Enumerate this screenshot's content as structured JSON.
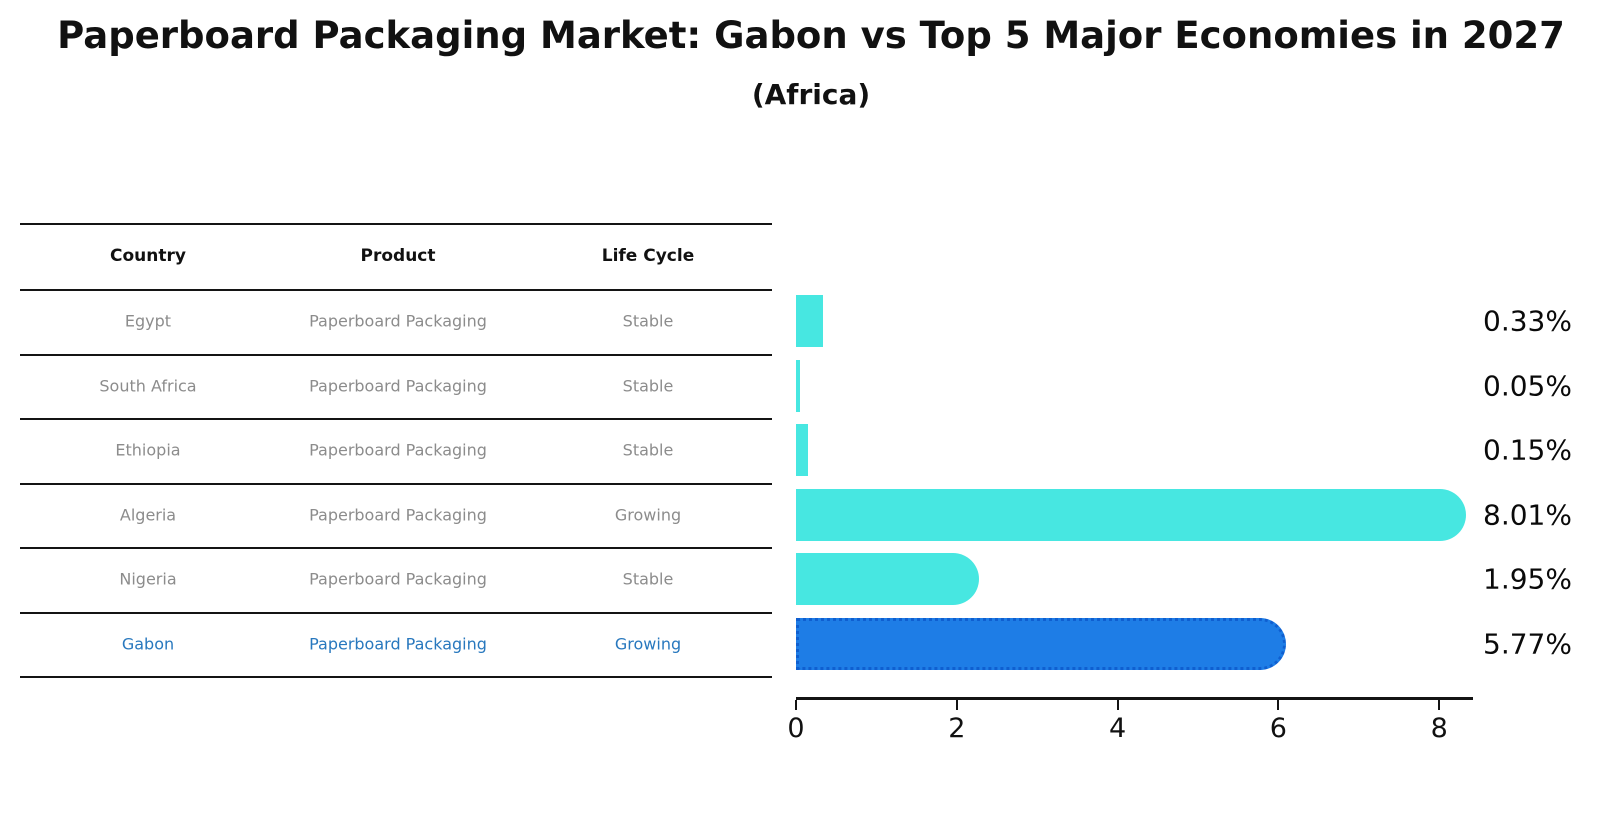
{
  "title": "Paperboard Packaging Market: Gabon vs Top 5 Major Economies in 2027",
  "subtitle": "(Africa)",
  "table": {
    "columns": [
      "Country",
      "Product",
      "Life Cycle"
    ],
    "rows": [
      {
        "country": "Egypt",
        "product": "Paperboard Packaging",
        "life_cycle": "Stable",
        "highlight": false
      },
      {
        "country": "South Africa",
        "product": "Paperboard Packaging",
        "life_cycle": "Stable",
        "highlight": false
      },
      {
        "country": "Ethiopia",
        "product": "Paperboard Packaging",
        "life_cycle": "Stable",
        "highlight": false
      },
      {
        "country": "Algeria",
        "product": "Paperboard Packaging",
        "life_cycle": "Growing",
        "highlight": false
      },
      {
        "country": "Nigeria",
        "product": "Paperboard Packaging",
        "life_cycle": "Stable",
        "highlight": false
      },
      {
        "country": "Gabon",
        "product": "Paperboard Packaging",
        "life_cycle": "Growing",
        "highlight": true
      }
    ]
  },
  "chart_data": {
    "type": "bar",
    "orientation": "horizontal",
    "title": "Paperboard Packaging Market: Gabon vs Top 5 Major Economies in 2027 (Africa)",
    "categories": [
      "Egypt",
      "South Africa",
      "Ethiopia",
      "Algeria",
      "Nigeria",
      "Gabon"
    ],
    "values": [
      0.33,
      0.05,
      0.15,
      8.01,
      1.95,
      5.77
    ],
    "value_labels": [
      "0.33%",
      "0.05%",
      "0.15%",
      "8.01%",
      "1.95%",
      "5.77%"
    ],
    "units": "percent CAGR-style share values shown as %",
    "x_ticks": [
      0,
      2,
      4,
      6,
      8
    ],
    "xlim": [
      0,
      8.42
    ],
    "grid": false,
    "legend": false,
    "highlight_index": 5
  },
  "colors": {
    "bar_cyan": "#47E7E1",
    "bar_blue": "#1E7DE6",
    "blue_border": "#0f5fd0",
    "row_text_gray": "#8c8c8c",
    "highlight_text_blue": "#2878be",
    "axis_black": "#141414"
  }
}
